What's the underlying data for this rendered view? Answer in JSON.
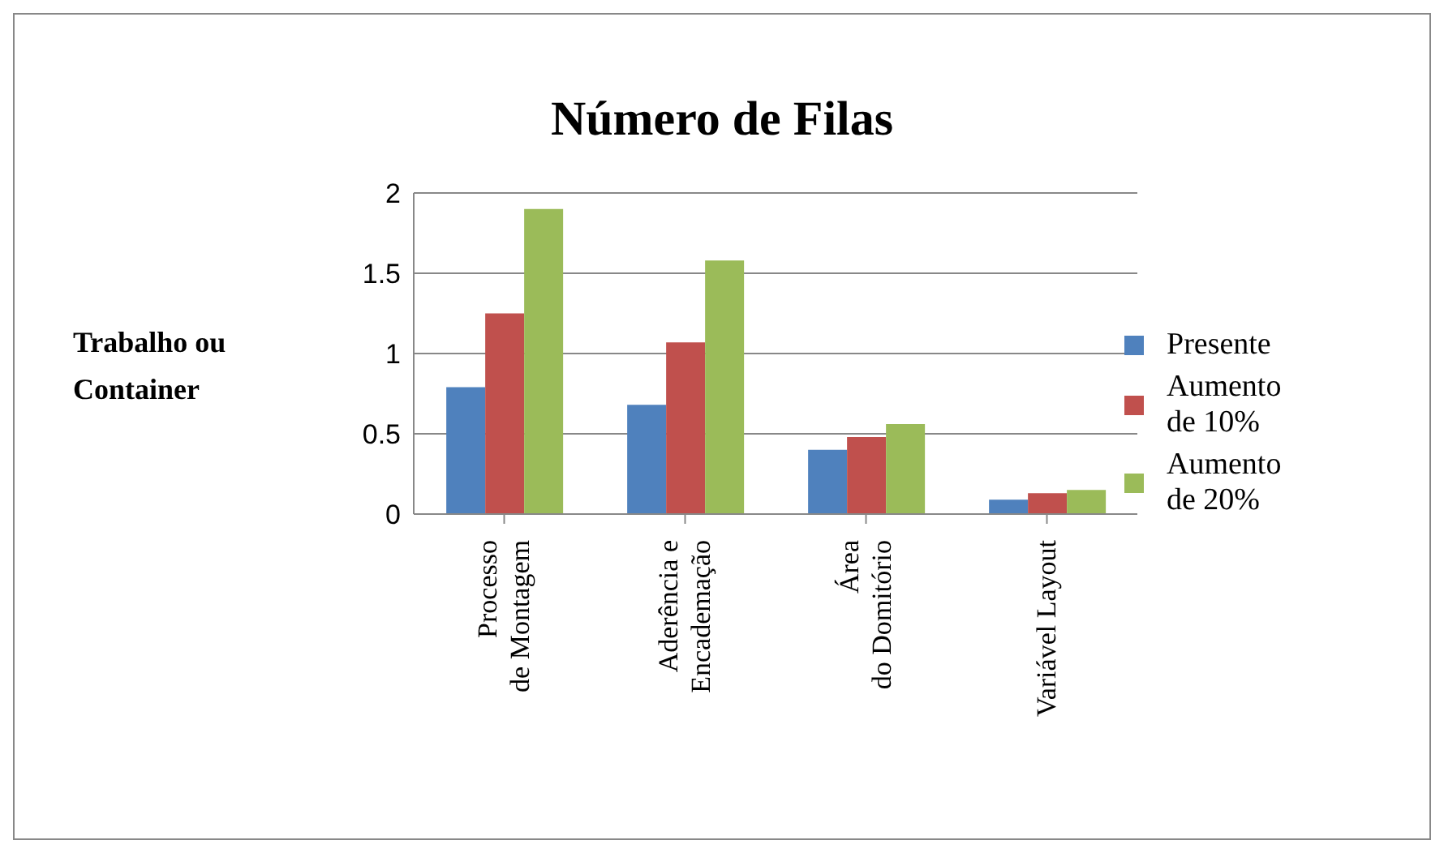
{
  "chart_data": {
    "type": "bar",
    "title": "Número de Filas",
    "ylabel": "Trabalho ou\nContainer",
    "categories": [
      "Processo\nde Montagem",
      "Aderência e\nEncademação",
      "Área\ndo Domitório",
      "Variável Layout"
    ],
    "series": [
      {
        "name": "Presente",
        "color": "#4f81bd",
        "values": [
          0.79,
          0.68,
          0.4,
          0.09
        ]
      },
      {
        "name": "Aumento\nde 10%",
        "color": "#c0504d",
        "values": [
          1.25,
          1.07,
          0.48,
          0.13
        ]
      },
      {
        "name": "Aumento\nde 20%",
        "color": "#9bbb59",
        "values": [
          1.9,
          1.58,
          0.56,
          0.15
        ]
      }
    ],
    "ylim": [
      0,
      2
    ],
    "yticks": [
      0,
      0.5,
      1,
      1.5,
      2
    ],
    "grid": "y",
    "legend": "right"
  }
}
